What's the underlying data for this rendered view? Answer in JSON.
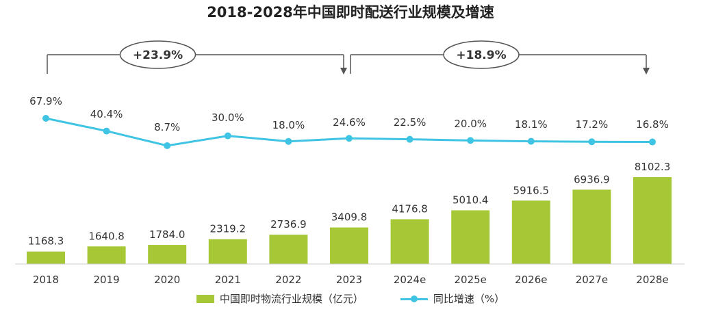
{
  "chart_data": {
    "type": "bar",
    "title": "2018-2028年中国即时配送行业规模及增速",
    "categories": [
      "2018",
      "2019",
      "2020",
      "2021",
      "2022",
      "2023",
      "2024e",
      "2025e",
      "2026e",
      "2027e",
      "2028e"
    ],
    "series": [
      {
        "name": "中国即时物流行业规模（亿元）",
        "type": "bar",
        "values": [
          1168.3,
          1640.8,
          1784.0,
          2319.2,
          2736.9,
          3409.8,
          4176.8,
          5010.4,
          5916.5,
          6936.9,
          8102.3
        ],
        "labels": [
          "1168.3",
          "1640.8",
          "1784.0",
          "2319.2",
          "2736.9",
          "3409.8",
          "4176.8",
          "5010.4",
          "5916.5",
          "6936.9",
          "8102.3"
        ],
        "color": "#a6c836"
      },
      {
        "name": "同比增速（%）",
        "type": "line",
        "values": [
          67.9,
          40.4,
          8.7,
          30.0,
          18.0,
          24.6,
          22.5,
          20.0,
          18.1,
          17.2,
          16.8
        ],
        "labels": [
          "67.9%",
          "40.4%",
          "8.7%",
          "30.0%",
          "18.0%",
          "24.6%",
          "22.5%",
          "20.0%",
          "18.1%",
          "17.2%",
          "16.8%"
        ],
        "color": "#3fc4e3"
      }
    ],
    "annotations": [
      {
        "label": "+23.9%",
        "from": "2018",
        "to": "2023"
      },
      {
        "label": "+18.9%",
        "from": "2023",
        "to": "2028e"
      }
    ],
    "legend_position": "bottom",
    "grid": false
  },
  "colors": {
    "bar": "#a6c836",
    "line": "#3fc4e3",
    "axis": "#cccccc",
    "bracket": "#555555"
  }
}
